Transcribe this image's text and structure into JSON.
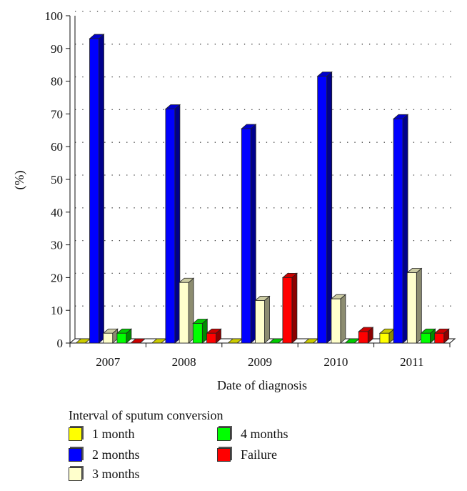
{
  "chart_data": {
    "type": "bar",
    "title": "",
    "xlabel": "Date of diagnosis",
    "ylabel": "(%)",
    "ylim": [
      0,
      100
    ],
    "yticks": [
      0,
      10,
      20,
      30,
      40,
      50,
      60,
      70,
      80,
      90,
      100
    ],
    "grid": true,
    "legend_position": "bottom",
    "categories": [
      "2007",
      "2008",
      "2009",
      "2010",
      "2011"
    ],
    "series": [
      {
        "name": "1 month",
        "color": "#ffff00",
        "values": [
          0,
          0,
          0,
          0,
          3
        ]
      },
      {
        "name": "2 months",
        "color": "#0000ff",
        "values": [
          93,
          71.5,
          65.5,
          81.5,
          68.5
        ]
      },
      {
        "name": "3 months",
        "color": "#ffffcc",
        "values": [
          3,
          18.5,
          13,
          13.5,
          21.5
        ]
      },
      {
        "name": "4 months",
        "color": "#00ff00",
        "values": [
          3,
          6,
          0,
          0,
          3
        ]
      },
      {
        "name": "Failure",
        "color": "#ff0000",
        "values": [
          0,
          3,
          20,
          3.5,
          3
        ]
      }
    ]
  },
  "legend": {
    "title": "Interval of sputum conversion",
    "items": [
      "1 month",
      "2 months",
      "3 months",
      "4 months",
      "Failure"
    ]
  }
}
